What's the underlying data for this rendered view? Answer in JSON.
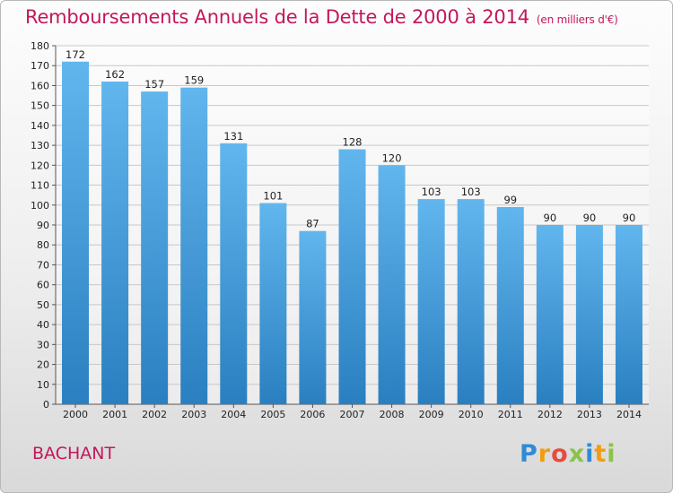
{
  "header": {
    "title": "Remboursements Annuels de la Dette de 2000 à 2014",
    "unit": "(en milliers d'€)"
  },
  "commune": "BACHANT",
  "logo": {
    "letters": [
      "P",
      "r",
      "o",
      "x",
      "i",
      "t",
      "i"
    ],
    "colors": [
      "#2e8bd6",
      "#f39c12",
      "#e74c3c",
      "#8bc34a",
      "#2e8bd6",
      "#f39c12",
      "#8bc34a"
    ]
  },
  "colors": {
    "bar_top": "#62b6ee",
    "bar_bottom": "#2a7fc0",
    "grid": "#c8c8c8"
  },
  "chart_data": {
    "type": "bar",
    "title": "Remboursements Annuels de la Dette de 2000 à 2014",
    "xlabel": "",
    "ylabel": "(en milliers d'€)",
    "categories": [
      "2000",
      "2001",
      "2002",
      "2003",
      "2004",
      "2005",
      "2006",
      "2007",
      "2008",
      "2009",
      "2010",
      "2011",
      "2012",
      "2013",
      "2014"
    ],
    "values": [
      172,
      162,
      157,
      159,
      131,
      101,
      87,
      128,
      120,
      103,
      103,
      99,
      90,
      90,
      90
    ],
    "ylim": [
      0,
      180
    ],
    "yticks": [
      0,
      10,
      20,
      30,
      40,
      50,
      60,
      70,
      80,
      90,
      100,
      110,
      120,
      130,
      140,
      150,
      160,
      170,
      180
    ],
    "grid": true
  }
}
